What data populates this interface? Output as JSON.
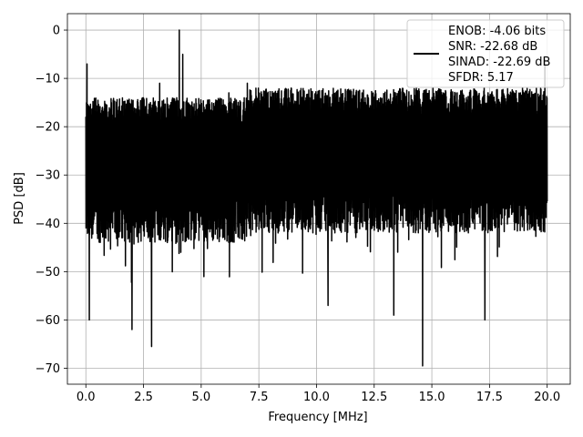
{
  "chart_data": {
    "type": "line",
    "title": "",
    "xlabel": "Frequency [MHz]",
    "ylabel": "PSD [dB]",
    "xlim": [
      -0.8,
      21.0
    ],
    "ylim": [
      -73.3,
      3.4
    ],
    "grid": true,
    "x_ticks": [
      0.0,
      2.5,
      5.0,
      7.5,
      10.0,
      12.5,
      15.0,
      17.5,
      20.0
    ],
    "x_tick_labels": [
      "0.0",
      "2.5",
      "5.0",
      "7.5",
      "10.0",
      "12.5",
      "15.0",
      "17.5",
      "20.0"
    ],
    "y_ticks": [
      0,
      -10,
      -20,
      -30,
      -40,
      -50,
      -60,
      -70
    ],
    "y_tick_labels": [
      "0",
      "−10",
      "−20",
      "−30",
      "−40",
      "−50",
      "−60",
      "−70"
    ],
    "legend_position": "top-right",
    "legend_lines": [
      "ENOB: -4.06 bits",
      "SNR: -22.68 dB",
      "SINAD: -22.69 dB",
      "SFDR: 5.17"
    ],
    "series": [
      {
        "color": "#000000",
        "x_range": [
          0.0,
          20.0
        ],
        "noise_floor_band": [
          -44,
          -14
        ],
        "peaks": [
          {
            "x": 0.05,
            "y": -7
          },
          {
            "x": 3.2,
            "y": -11
          },
          {
            "x": 4.05,
            "y": 0
          },
          {
            "x": 4.2,
            "y": -5
          },
          {
            "x": 6.2,
            "y": -13
          },
          {
            "x": 7.0,
            "y": -11
          },
          {
            "x": 8.9,
            "y": -12
          },
          {
            "x": 19.9,
            "y": -6
          }
        ],
        "troughs": [
          {
            "x": 0.15,
            "y": -60
          },
          {
            "x": 2.0,
            "y": -62
          },
          {
            "x": 2.85,
            "y": -65.5
          },
          {
            "x": 10.5,
            "y": -57
          },
          {
            "x": 13.35,
            "y": -59
          },
          {
            "x": 14.6,
            "y": -69.5
          },
          {
            "x": 17.3,
            "y": -60
          }
        ]
      }
    ]
  }
}
